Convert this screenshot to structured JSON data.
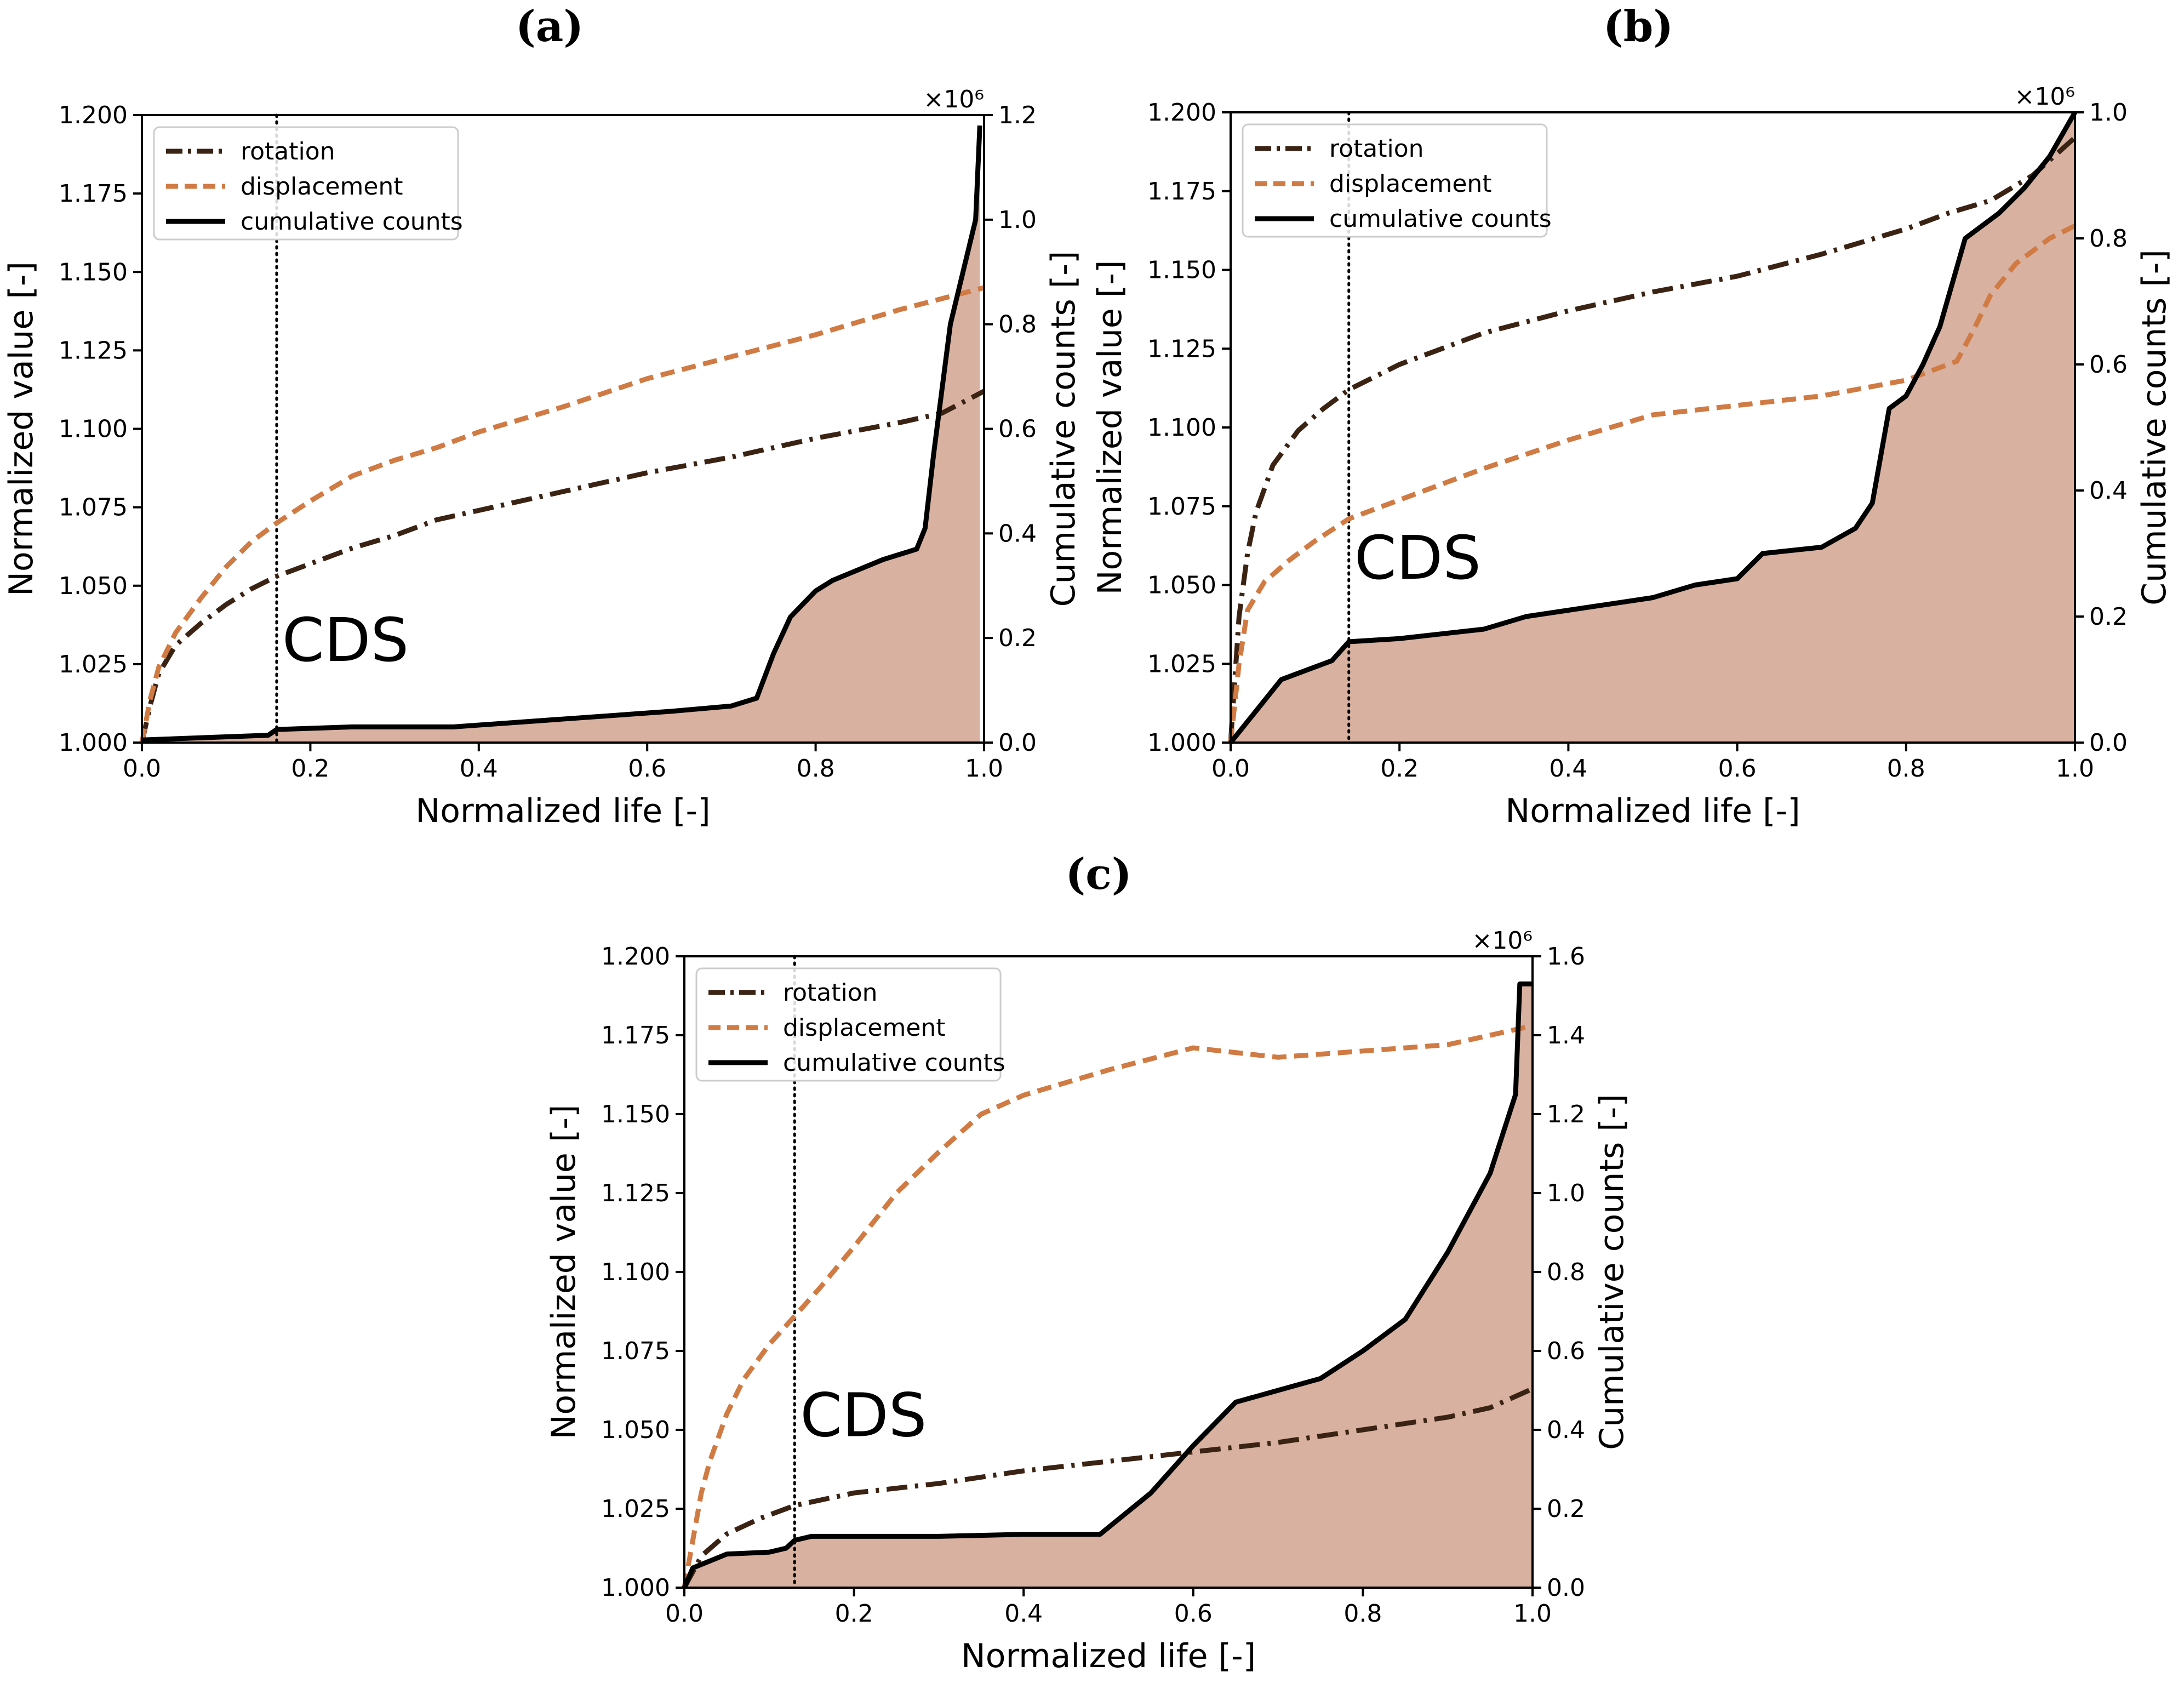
{
  "chart_data": [
    {
      "panel_label": "(a)",
      "type": "line",
      "x_label": "Normalized life [-]",
      "y_label": "Normalized value [-]",
      "y2_label": "Cumulative counts [-]",
      "y2_multiplier": "×10⁶",
      "xlim": [
        0,
        1
      ],
      "ylim": [
        1.0,
        1.2
      ],
      "y2lim": [
        0,
        1.2
      ],
      "x_ticks": [
        "0.0",
        "0.2",
        "0.4",
        "0.6",
        "0.8",
        "1.0"
      ],
      "y_ticks": [
        "1.000",
        "1.025",
        "1.050",
        "1.075",
        "1.100",
        "1.125",
        "1.150",
        "1.175",
        "1.200"
      ],
      "y2_ticks": [
        "0.0",
        "0.2",
        "0.4",
        "0.6",
        "0.8",
        "1.0",
        "1.2"
      ],
      "cds_x": 0.16,
      "cds_label": "CDS",
      "legend": [
        "rotation",
        "displacement",
        "cumulative counts"
      ],
      "series": [
        {
          "name": "rotation",
          "axis": "left",
          "x": [
            0.0,
            0.01,
            0.02,
            0.04,
            0.07,
            0.1,
            0.13,
            0.16,
            0.2,
            0.25,
            0.3,
            0.35,
            0.4,
            0.5,
            0.6,
            0.7,
            0.8,
            0.9,
            0.95,
            1.0
          ],
          "y": [
            1.0,
            1.012,
            1.022,
            1.031,
            1.038,
            1.044,
            1.049,
            1.053,
            1.057,
            1.062,
            1.066,
            1.071,
            1.074,
            1.08,
            1.086,
            1.091,
            1.097,
            1.102,
            1.105,
            1.112
          ]
        },
        {
          "name": "displacement",
          "axis": "left",
          "x": [
            0.0,
            0.01,
            0.02,
            0.04,
            0.07,
            0.1,
            0.13,
            0.16,
            0.2,
            0.25,
            0.3,
            0.35,
            0.4,
            0.5,
            0.6,
            0.7,
            0.8,
            0.9,
            1.0
          ],
          "y": [
            1.0,
            1.014,
            1.024,
            1.035,
            1.046,
            1.056,
            1.064,
            1.07,
            1.077,
            1.085,
            1.09,
            1.094,
            1.099,
            1.107,
            1.116,
            1.123,
            1.13,
            1.138,
            1.145
          ]
        },
        {
          "name": "cumulative counts",
          "axis": "right",
          "filled": true,
          "x": [
            0.0,
            0.15,
            0.16,
            0.25,
            0.37,
            0.5,
            0.63,
            0.7,
            0.73,
            0.75,
            0.77,
            0.8,
            0.82,
            0.88,
            0.92,
            0.93,
            0.94,
            0.96,
            0.99,
            0.995
          ],
          "y": [
            0.005,
            0.014,
            0.025,
            0.03,
            0.03,
            0.045,
            0.06,
            0.07,
            0.085,
            0.17,
            0.24,
            0.29,
            0.31,
            0.35,
            0.37,
            0.41,
            0.55,
            0.8,
            1.0,
            1.18
          ]
        }
      ]
    },
    {
      "panel_label": "(b)",
      "type": "line",
      "x_label": "Normalized life [-]",
      "y_label": "Normalized value [-]",
      "y2_label": "Cumulative counts [-]",
      "y2_multiplier": "×10⁶",
      "xlim": [
        0,
        1
      ],
      "ylim": [
        1.0,
        1.2
      ],
      "y2lim": [
        0,
        1.0
      ],
      "x_ticks": [
        "0.0",
        "0.2",
        "0.4",
        "0.6",
        "0.8",
        "1.0"
      ],
      "y_ticks": [
        "1.000",
        "1.025",
        "1.050",
        "1.075",
        "1.100",
        "1.125",
        "1.150",
        "1.175",
        "1.200"
      ],
      "y2_ticks": [
        "0.0",
        "0.2",
        "0.4",
        "0.6",
        "0.8",
        "1.0"
      ],
      "cds_x": 0.14,
      "cds_label": "CDS",
      "legend": [
        "rotation",
        "displacement",
        "cumulative counts"
      ],
      "series": [
        {
          "name": "rotation",
          "axis": "left",
          "x": [
            0.0,
            0.01,
            0.02,
            0.03,
            0.05,
            0.08,
            0.11,
            0.14,
            0.2,
            0.3,
            0.4,
            0.5,
            0.6,
            0.7,
            0.8,
            0.85,
            0.9,
            0.95,
            1.0
          ],
          "y": [
            1.0,
            1.04,
            1.06,
            1.073,
            1.088,
            1.099,
            1.106,
            1.112,
            1.12,
            1.13,
            1.137,
            1.143,
            1.148,
            1.155,
            1.163,
            1.168,
            1.172,
            1.18,
            1.192
          ]
        },
        {
          "name": "displacement",
          "axis": "left",
          "x": [
            0.0,
            0.01,
            0.02,
            0.04,
            0.07,
            0.1,
            0.14,
            0.2,
            0.3,
            0.4,
            0.5,
            0.6,
            0.7,
            0.8,
            0.86,
            0.88,
            0.9,
            0.93,
            0.97,
            1.0
          ],
          "y": [
            1.0,
            1.025,
            1.042,
            1.051,
            1.058,
            1.064,
            1.071,
            1.077,
            1.087,
            1.096,
            1.104,
            1.107,
            1.11,
            1.115,
            1.121,
            1.131,
            1.142,
            1.152,
            1.16,
            1.164
          ]
        },
        {
          "name": "cumulative counts",
          "axis": "right",
          "filled": true,
          "x": [
            0.0,
            0.03,
            0.06,
            0.09,
            0.12,
            0.14,
            0.2,
            0.3,
            0.35,
            0.4,
            0.5,
            0.55,
            0.6,
            0.63,
            0.7,
            0.74,
            0.76,
            0.78,
            0.8,
            0.82,
            0.84,
            0.87,
            0.88,
            0.91,
            0.94,
            0.97,
            1.0
          ],
          "y": [
            0.0,
            0.05,
            0.1,
            0.115,
            0.13,
            0.16,
            0.165,
            0.18,
            0.2,
            0.21,
            0.23,
            0.25,
            0.26,
            0.3,
            0.31,
            0.34,
            0.38,
            0.53,
            0.55,
            0.6,
            0.66,
            0.8,
            0.81,
            0.84,
            0.88,
            0.93,
            1.0
          ]
        }
      ]
    },
    {
      "panel_label": "(c)",
      "type": "line",
      "x_label": "Normalized life [-]",
      "y_label": "Normalized value [-]",
      "y2_label": "Cumulative counts [-]",
      "y2_multiplier": "×10⁶",
      "xlim": [
        0,
        1
      ],
      "ylim": [
        1.0,
        1.2
      ],
      "y2lim": [
        0,
        1.6
      ],
      "x_ticks": [
        "0.0",
        "0.2",
        "0.4",
        "0.6",
        "0.8",
        "1.0"
      ],
      "y_ticks": [
        "1.000",
        "1.025",
        "1.050",
        "1.075",
        "1.100",
        "1.125",
        "1.150",
        "1.175",
        "1.200"
      ],
      "y2_ticks": [
        "0.0",
        "0.2",
        "0.4",
        "0.6",
        "0.8",
        "1.0",
        "1.2",
        "1.4",
        "1.6"
      ],
      "cds_x": 0.13,
      "cds_label": "CDS",
      "legend": [
        "rotation",
        "displacement",
        "cumulative counts"
      ],
      "series": [
        {
          "name": "rotation",
          "axis": "left",
          "x": [
            0.0,
            0.02,
            0.05,
            0.09,
            0.13,
            0.2,
            0.3,
            0.4,
            0.5,
            0.6,
            0.7,
            0.8,
            0.9,
            0.95,
            1.0
          ],
          "y": [
            1.0,
            1.01,
            1.017,
            1.022,
            1.026,
            1.03,
            1.033,
            1.037,
            1.04,
            1.043,
            1.046,
            1.05,
            1.054,
            1.057,
            1.063
          ]
        },
        {
          "name": "displacement",
          "axis": "left",
          "x": [
            0.0,
            0.01,
            0.02,
            0.03,
            0.05,
            0.07,
            0.1,
            0.13,
            0.16,
            0.2,
            0.25,
            0.3,
            0.35,
            0.4,
            0.5,
            0.6,
            0.7,
            0.8,
            0.9,
            1.0
          ],
          "y": [
            1.0,
            1.015,
            1.03,
            1.04,
            1.055,
            1.066,
            1.077,
            1.086,
            1.095,
            1.108,
            1.125,
            1.138,
            1.15,
            1.156,
            1.164,
            1.171,
            1.168,
            1.17,
            1.172,
            1.178
          ]
        },
        {
          "name": "cumulative counts",
          "axis": "right",
          "filled": true,
          "x": [
            0.0,
            0.01,
            0.05,
            0.1,
            0.12,
            0.13,
            0.15,
            0.3,
            0.4,
            0.49,
            0.55,
            0.6,
            0.65,
            0.7,
            0.75,
            0.8,
            0.85,
            0.9,
            0.95,
            0.98,
            0.985,
            1.0
          ],
          "y": [
            0.0,
            0.05,
            0.085,
            0.09,
            0.1,
            0.12,
            0.13,
            0.13,
            0.135,
            0.135,
            0.24,
            0.36,
            0.47,
            0.5,
            0.53,
            0.6,
            0.68,
            0.85,
            1.05,
            1.25,
            1.53,
            1.53
          ]
        }
      ]
    }
  ],
  "colors": {
    "rotation": "#3b2314",
    "displacement": "#d07b44",
    "counts_line": "#000000",
    "counts_fill": "#d8b1a0"
  }
}
